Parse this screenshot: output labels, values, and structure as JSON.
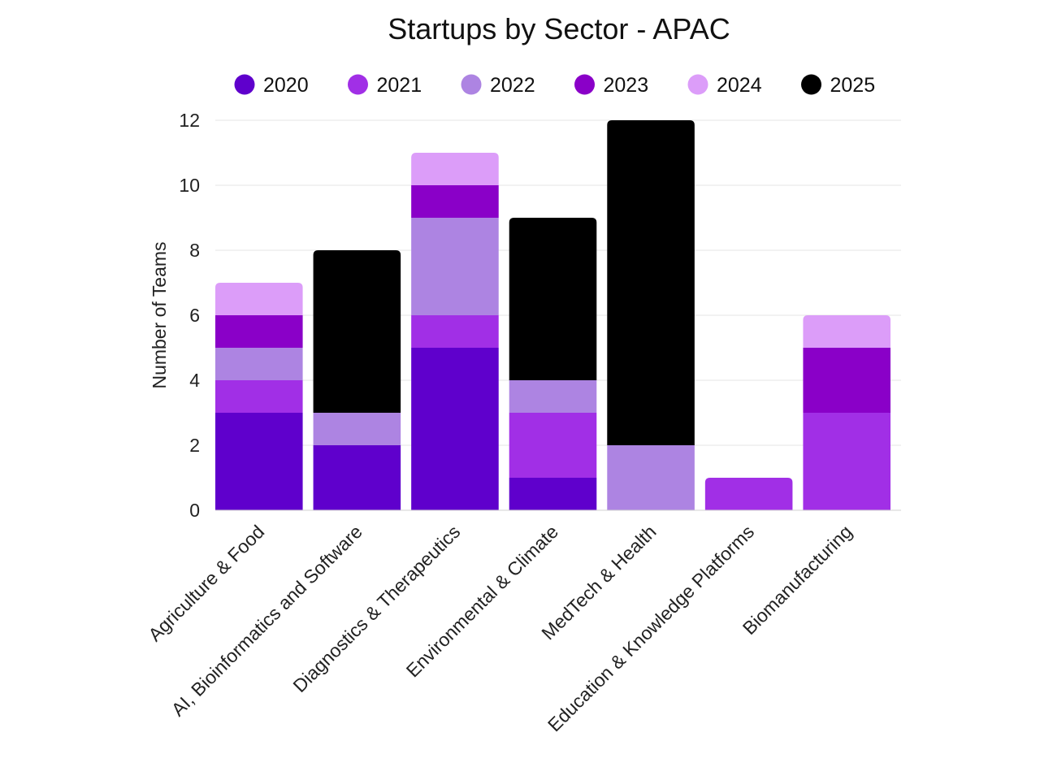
{
  "chart_data": {
    "type": "bar",
    "stacked": true,
    "title": "Startups by Sector - APAC",
    "xlabel": "",
    "ylabel": "Number of Teams",
    "ylim": [
      0,
      12
    ],
    "yticks": [
      0,
      2,
      4,
      6,
      8,
      10,
      12
    ],
    "grid": true,
    "legend_position": "top",
    "categories": [
      "Agriculture & Food",
      "AI, Bioinformatics and Software",
      "Diagnostics & Therapeutics",
      "Environmental & Climate",
      "MedTech & Health",
      "Education & Knowledge Platforms",
      "Biomanufacturing"
    ],
    "series": [
      {
        "name": "2020",
        "color": "#5f00cc",
        "values": [
          3,
          2,
          5,
          1,
          0,
          0,
          0
        ]
      },
      {
        "name": "2021",
        "color": "#a12fe6",
        "values": [
          1,
          0,
          1,
          2,
          0,
          1,
          3
        ]
      },
      {
        "name": "2022",
        "color": "#ad84e2",
        "values": [
          1,
          1,
          3,
          1,
          2,
          0,
          0
        ]
      },
      {
        "name": "2023",
        "color": "#8a00c8",
        "values": [
          1,
          0,
          1,
          0,
          0,
          0,
          2
        ]
      },
      {
        "name": "2024",
        "color": "#dc9df9",
        "values": [
          1,
          0,
          1,
          0,
          0,
          0,
          1
        ]
      },
      {
        "name": "2025",
        "color": "#000000",
        "values": [
          0,
          5,
          0,
          5,
          10,
          0,
          0
        ]
      }
    ]
  }
}
